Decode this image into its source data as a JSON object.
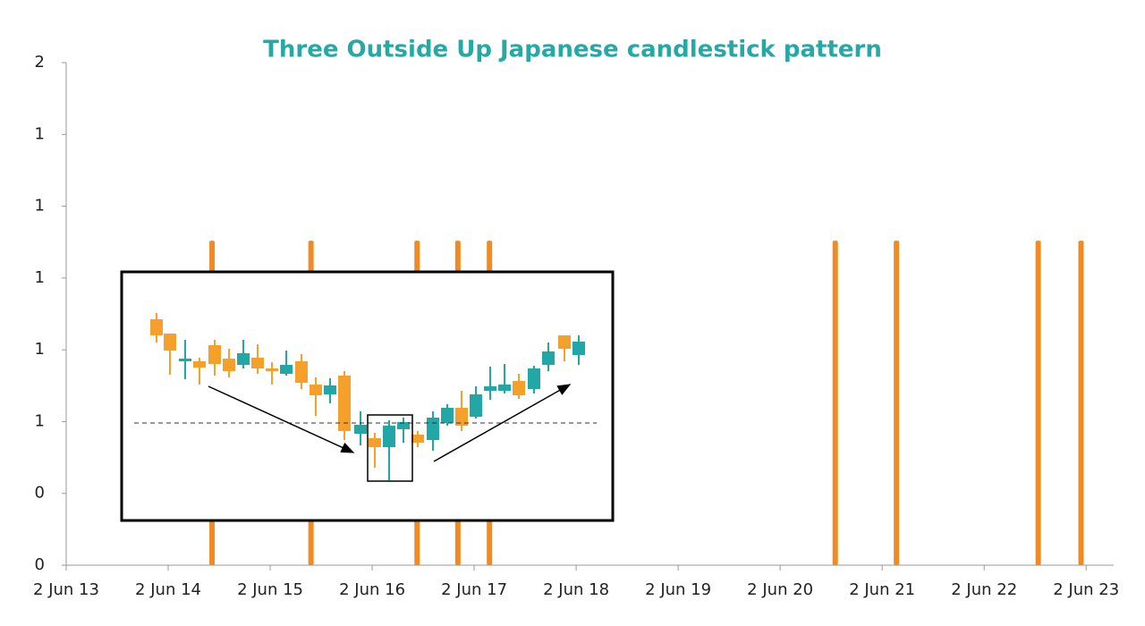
{
  "chart_data": {
    "type": "bar",
    "title": "Three Outside Up Japanese candlestick pattern",
    "x": [
      1.43,
      2.4,
      3.44,
      3.84,
      4.15,
      7.54,
      8.14,
      9.53,
      9.95
    ],
    "values": [
      1.13,
      1.13,
      1.13,
      1.13,
      1.13,
      1.13,
      1.13,
      1.13,
      1.13
    ],
    "color": "#f08a24",
    "xlim": [
      0,
      10.27
    ],
    "xticks": [
      {
        "value": 0,
        "label": "2 Jun 13"
      },
      {
        "value": 1,
        "label": "2 Jun 14"
      },
      {
        "value": 2,
        "label": "2 Jun 15"
      },
      {
        "value": 3,
        "label": "2 Jun 16"
      },
      {
        "value": 4,
        "label": "2 Jun 17"
      },
      {
        "value": 5,
        "label": "2 Jun 18"
      },
      {
        "value": 6,
        "label": "2 Jun 19"
      },
      {
        "value": 7,
        "label": "2 Jun 20"
      },
      {
        "value": 8,
        "label": "2 Jun 21"
      },
      {
        "value": 9,
        "label": "2 Jun 22"
      },
      {
        "value": 10,
        "label": "2 Jun 23"
      }
    ],
    "ylim": [
      0,
      1.75
    ],
    "yticks": [
      0,
      {
        "value": 0.25,
        "label": "0"
      },
      {
        "value": 0.5,
        "label": "1"
      },
      {
        "value": 0.75,
        "label": "1"
      },
      1,
      {
        "value": 1.25,
        "label": "1"
      },
      {
        "value": 1.5,
        "label": "1"
      },
      {
        "value": 1.75,
        "label": "2"
      }
    ],
    "grid": false
  }
}
